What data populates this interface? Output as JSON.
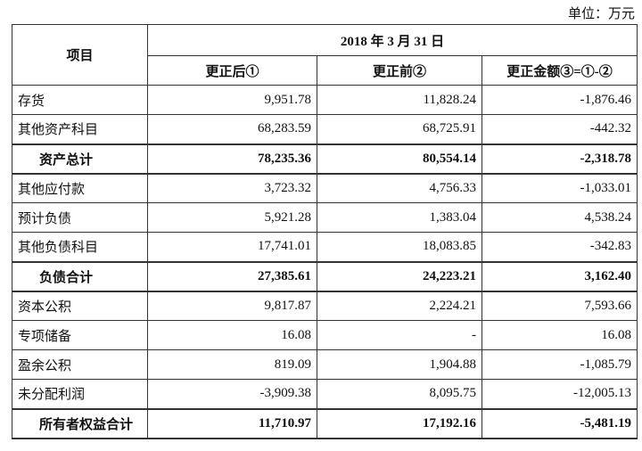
{
  "unit": "单位：万元",
  "table": {
    "header": {
      "item": "项目",
      "date": "2018 年 3 月 31 日",
      "columns": [
        "更正后①",
        "更正前②",
        "更正金额③=①-②"
      ]
    },
    "rows": [
      {
        "cells": [
          "存货",
          "9,951.78",
          "11,828.24",
          "-1,876.46"
        ]
      },
      {
        "cells": [
          "其他资产科目",
          "68,283.59",
          "68,725.91",
          "-442.32"
        ]
      },
      {
        "cells": [
          "资产总计",
          "78,235.36",
          "80,554.14",
          "-2,318.78"
        ],
        "bold": true
      },
      {
        "cells": [
          "其他应付款",
          "3,723.32",
          "4,756.33",
          "-1,033.01"
        ]
      },
      {
        "cells": [
          "预计负债",
          "5,921.28",
          "1,383.04",
          "4,538.24"
        ]
      },
      {
        "cells": [
          "其他负债科目",
          "17,741.01",
          "18,083.85",
          "-342.83"
        ]
      },
      {
        "cells": [
          "负债合计",
          "27,385.61",
          "24,223.21",
          "3,162.40"
        ],
        "bold": true
      },
      {
        "cells": [
          "资本公积",
          "9,817.87",
          "2,224.21",
          "7,593.66"
        ]
      },
      {
        "cells": [
          "专项储备",
          "16.08",
          "-",
          "16.08"
        ]
      },
      {
        "cells": [
          "盈余公积",
          "819.09",
          "1,904.88",
          "-1,085.79"
        ]
      },
      {
        "cells": [
          "未分配利润",
          "-3,909.38",
          "8,095.75",
          "-12,005.13"
        ]
      },
      {
        "cells": [
          "所有者权益合计",
          "11,710.97",
          "17,192.16",
          "-5,481.19"
        ],
        "bold": true
      }
    ]
  }
}
